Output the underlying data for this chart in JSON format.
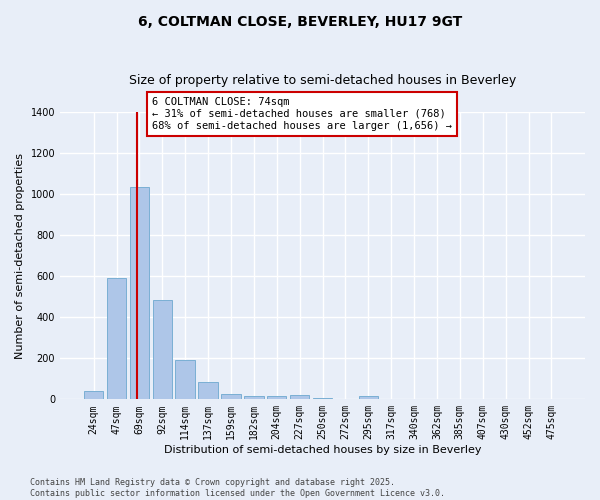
{
  "title1": "6, COLTMAN CLOSE, BEVERLEY, HU17 9GT",
  "title2": "Size of property relative to semi-detached houses in Beverley",
  "xlabel": "Distribution of semi-detached houses by size in Beverley",
  "ylabel": "Number of semi-detached properties",
  "categories": [
    "24sqm",
    "47sqm",
    "69sqm",
    "92sqm",
    "114sqm",
    "137sqm",
    "159sqm",
    "182sqm",
    "204sqm",
    "227sqm",
    "250sqm",
    "272sqm",
    "295sqm",
    "317sqm",
    "340sqm",
    "362sqm",
    "385sqm",
    "407sqm",
    "430sqm",
    "452sqm",
    "475sqm"
  ],
  "values": [
    40,
    590,
    1035,
    485,
    190,
    85,
    25,
    15,
    15,
    20,
    5,
    0,
    15,
    0,
    0,
    0,
    0,
    0,
    0,
    0,
    0
  ],
  "bar_color": "#aec6e8",
  "bar_edge_color": "#7aafd4",
  "background_color": "#e8eef8",
  "grid_color": "#ffffff",
  "vline_x_index": 2,
  "vline_color": "#cc0000",
  "annotation_line1": "6 COLTMAN CLOSE: 74sqm",
  "annotation_line2": "← 31% of semi-detached houses are smaller (768)",
  "annotation_line3": "68% of semi-detached houses are larger (1,656) →",
  "annotation_box_color": "#ffffff",
  "annotation_box_edge": "#cc0000",
  "ylim": [
    0,
    1400
  ],
  "yticks": [
    0,
    200,
    400,
    600,
    800,
    1000,
    1200,
    1400
  ],
  "footnote": "Contains HM Land Registry data © Crown copyright and database right 2025.\nContains public sector information licensed under the Open Government Licence v3.0.",
  "title_fontsize": 10,
  "subtitle_fontsize": 9,
  "axis_label_fontsize": 8,
  "tick_fontsize": 7,
  "annotation_fontsize": 7.5
}
